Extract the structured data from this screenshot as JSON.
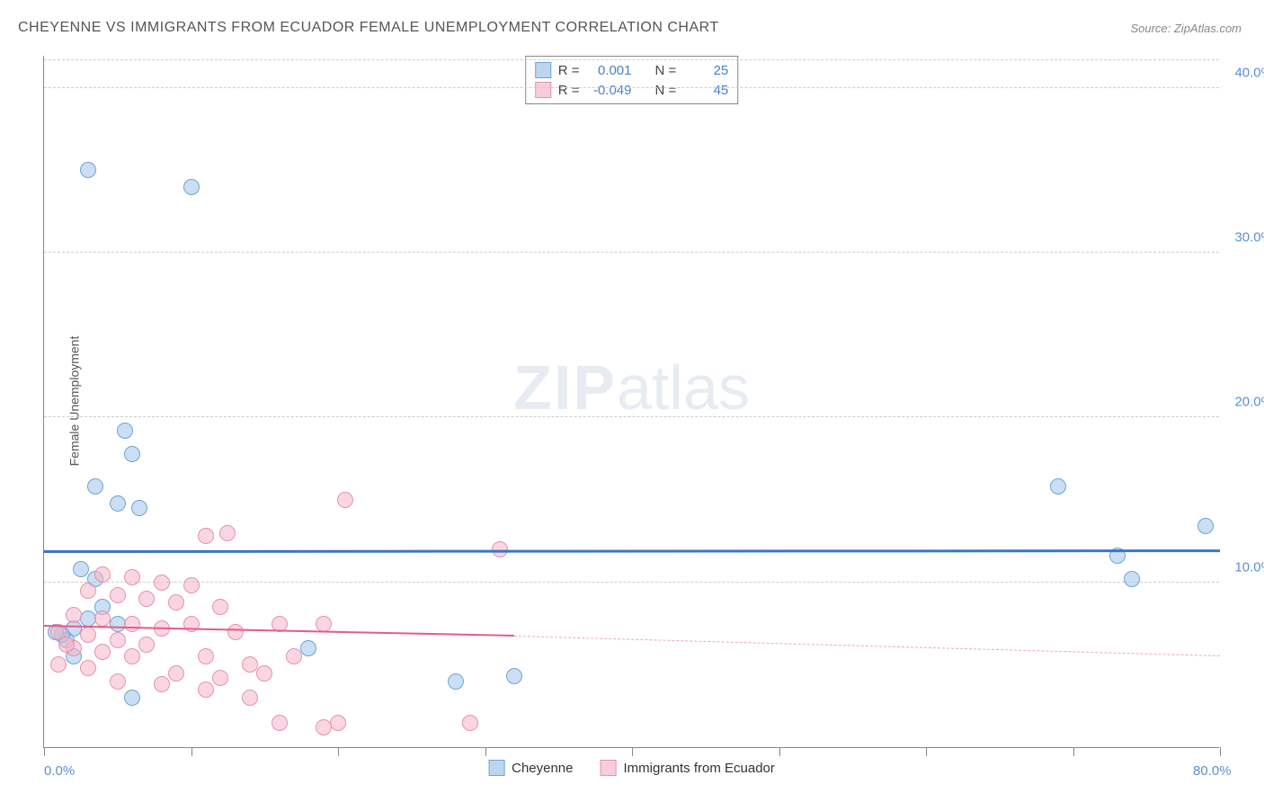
{
  "title": "CHEYENNE VS IMMIGRANTS FROM ECUADOR FEMALE UNEMPLOYMENT CORRELATION CHART",
  "source": "Source: ZipAtlas.com",
  "y_axis_label": "Female Unemployment",
  "watermark": {
    "bold": "ZIP",
    "light": "atlas"
  },
  "chart": {
    "type": "scatter",
    "xlim": [
      0,
      80
    ],
    "ylim": [
      0,
      42
    ],
    "x_ticks": [
      0,
      10,
      20,
      30,
      40,
      50,
      60,
      70,
      80
    ],
    "x_tick_labels": {
      "0": "0.0%",
      "80": "80.0%"
    },
    "y_gridlines": [
      10,
      20,
      30,
      40
    ],
    "y_tick_labels": {
      "10": "10.0%",
      "20": "20.0%",
      "30": "30.0%",
      "40": "40.0%"
    },
    "background_color": "#ffffff",
    "grid_color": "#cccccc",
    "axis_color": "#888888"
  },
  "series": [
    {
      "name": "Cheyenne",
      "color_fill": "rgba(158,196,234,0.55)",
      "color_stroke": "#6fa3d8",
      "marker_radius": 9,
      "stats": {
        "R": "0.001",
        "N": "25"
      },
      "trend": {
        "y_start": 11.8,
        "y_end": 11.85,
        "color": "#3a76c4",
        "width": 3
      },
      "points": [
        [
          3,
          35
        ],
        [
          10,
          34
        ],
        [
          5.5,
          19.2
        ],
        [
          6,
          17.8
        ],
        [
          3.5,
          15.8
        ],
        [
          5,
          14.8
        ],
        [
          6.5,
          14.5
        ],
        [
          2.5,
          10.8
        ],
        [
          3.5,
          10.2
        ],
        [
          2,
          7.2
        ],
        [
          5,
          7.5
        ],
        [
          1.5,
          6.5
        ],
        [
          18,
          6.0
        ],
        [
          32,
          4.3
        ],
        [
          28,
          4.0
        ],
        [
          6,
          3.0
        ],
        [
          69,
          15.8
        ],
        [
          79,
          13.4
        ],
        [
          73,
          11.6
        ],
        [
          74,
          10.2
        ],
        [
          1.2,
          6.8
        ],
        [
          2.0,
          5.5
        ],
        [
          0.8,
          7.0
        ],
        [
          4.0,
          8.5
        ],
        [
          3.0,
          7.8
        ]
      ]
    },
    {
      "name": "Immigrants from Ecuador",
      "color_fill": "rgba(245,180,200,0.55)",
      "color_stroke": "#e692ab",
      "marker_radius": 9,
      "stats": {
        "R": "-0.049",
        "N": "45"
      },
      "trend": {
        "y_start": 7.3,
        "y_end_solid": 6.7,
        "x_end_solid": 32,
        "y_end": 5.5,
        "color": "#e65b88",
        "width": 2
      },
      "points": [
        [
          20.5,
          15.0
        ],
        [
          31,
          12.0
        ],
        [
          12.5,
          13.0
        ],
        [
          11,
          12.8
        ],
        [
          4,
          10.5
        ],
        [
          6,
          10.3
        ],
        [
          8,
          10.0
        ],
        [
          10,
          9.8
        ],
        [
          3,
          9.5
        ],
        [
          5,
          9.2
        ],
        [
          7,
          9.0
        ],
        [
          9,
          8.8
        ],
        [
          12,
          8.5
        ],
        [
          2,
          8.0
        ],
        [
          4,
          7.8
        ],
        [
          6,
          7.5
        ],
        [
          8,
          7.2
        ],
        [
          10,
          7.5
        ],
        [
          13,
          7.0
        ],
        [
          1,
          7.0
        ],
        [
          3,
          6.8
        ],
        [
          5,
          6.5
        ],
        [
          7,
          6.2
        ],
        [
          16,
          7.5
        ],
        [
          19,
          7.5
        ],
        [
          2,
          6.0
        ],
        [
          4,
          5.8
        ],
        [
          6,
          5.5
        ],
        [
          11,
          5.5
        ],
        [
          14,
          5.0
        ],
        [
          17,
          5.5
        ],
        [
          1,
          5.0
        ],
        [
          3,
          4.8
        ],
        [
          9,
          4.5
        ],
        [
          12,
          4.2
        ],
        [
          15,
          4.5
        ],
        [
          5,
          4.0
        ],
        [
          8,
          3.8
        ],
        [
          11,
          3.5
        ],
        [
          14,
          3.0
        ],
        [
          16,
          1.5
        ],
        [
          19,
          1.2
        ],
        [
          20,
          1.5
        ],
        [
          29,
          1.5
        ],
        [
          1.5,
          6.2
        ]
      ]
    }
  ],
  "legend_top": {
    "border_color": "#888888",
    "rows": [
      {
        "swatch_fill": "#bcd6f0",
        "swatch_border": "#6fa3d8",
        "r_label": "R =",
        "r_val": "0.001",
        "n_label": "N =",
        "n_val": "25"
      },
      {
        "swatch_fill": "#f7cdd9",
        "swatch_border": "#e692ab",
        "r_label": "R =",
        "r_val": "-0.049",
        "n_label": "N =",
        "n_val": "45"
      }
    ]
  },
  "legend_bottom": [
    {
      "swatch_fill": "#bcd6f0",
      "swatch_border": "#6fa3d8",
      "label": "Cheyenne"
    },
    {
      "swatch_fill": "#f7cdd9",
      "swatch_border": "#e692ab",
      "label": "Immigrants from Ecuador"
    }
  ]
}
